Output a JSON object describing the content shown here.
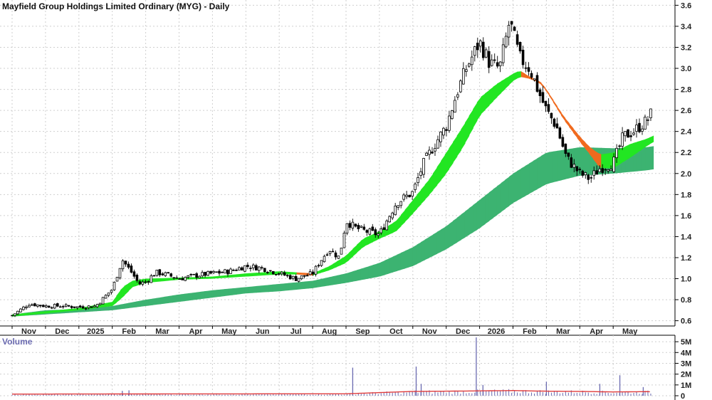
{
  "chart_data": [
    {
      "type": "candlestick",
      "title": "Mayfield Group Holdings Limited Ordinary (MYG) - Daily",
      "x_tick_labels": [
        "Nov",
        "Dec",
        "2025",
        "Feb",
        "Mar",
        "Apr",
        "May",
        "Jun",
        "Jul",
        "Aug",
        "Sep",
        "Oct",
        "Nov",
        "Dec",
        "2026",
        "Feb",
        "Mar",
        "Apr",
        "May"
      ],
      "x_tick_month_index": [
        1,
        2,
        3,
        4,
        5,
        6,
        7,
        8,
        9,
        10,
        11,
        12,
        13,
        14,
        15,
        16,
        17,
        18,
        19
      ],
      "y_ticks": [
        "0.6",
        "0.8",
        "1.0",
        "1.2",
        "1.4",
        "1.6",
        "1.8",
        "2.0",
        "2.2",
        "2.4",
        "2.6",
        "2.8",
        "3.0",
        "3.2",
        "3.4",
        "3.6"
      ],
      "ylim": [
        0.55,
        3.65
      ],
      "grid": true,
      "colors": {
        "candle": "#000000",
        "short_band_up": "#22e622",
        "short_band_down": "#f06a1e",
        "short_band_fade": "#f7b3b3",
        "long_band_up": "#3cb371",
        "long_band_down": "#f06a1e",
        "ribbon_line": "#ff4d4d"
      },
      "series": [
        {
          "key": "close",
          "x": [
            0,
            0.5,
            1,
            1.5,
            2,
            2.5,
            3,
            3.3,
            3.6,
            3.8,
            4,
            4.3,
            4.6,
            5,
            5.5,
            6,
            6.5,
            7,
            7.5,
            8,
            8.5,
            9,
            9.3,
            9.5,
            9.8,
            10,
            10.3,
            10.6,
            11,
            11.5,
            12,
            12.3,
            12.6,
            13,
            13.3,
            13.6,
            14,
            14.3,
            14.6,
            14.9,
            15.2,
            15.5,
            15.8,
            16,
            16.3,
            16.6,
            17,
            17.3,
            17.6,
            18,
            18.3,
            18.6,
            19,
            19.2
          ],
          "values": [
            0.65,
            0.76,
            0.74,
            0.74,
            0.73,
            0.74,
            0.9,
            1.18,
            1.05,
            0.95,
            0.97,
            1.06,
            1.04,
            1.0,
            1.03,
            1.05,
            1.07,
            1.12,
            1.1,
            1.05,
            1.0,
            1.05,
            1.2,
            1.28,
            1.2,
            1.55,
            1.48,
            1.45,
            1.42,
            1.72,
            1.82,
            2.08,
            2.25,
            2.45,
            2.75,
            3.0,
            3.25,
            3.05,
            3.0,
            3.45,
            3.1,
            3.0,
            2.75,
            2.6,
            2.45,
            2.15,
            2.0,
            1.95,
            2.05,
            2.1,
            2.35,
            2.4,
            2.5,
            2.6
          ]
        },
        {
          "key": "short_band_upper",
          "x": [
            0,
            2,
            3,
            3.3,
            3.6,
            4,
            5,
            6,
            7,
            8,
            8.5,
            9,
            9.5,
            10,
            10.5,
            11,
            11.5,
            12,
            12.5,
            13,
            13.5,
            14,
            14.5,
            15,
            15.2,
            15.5,
            15.8,
            16,
            16.5,
            17,
            17.3,
            17.6,
            18,
            18.5,
            19,
            19.2
          ],
          "values": [
            0.66,
            0.72,
            0.78,
            0.92,
            0.98,
            1.0,
            1.01,
            1.02,
            1.05,
            1.07,
            1.06,
            1.05,
            1.12,
            1.22,
            1.38,
            1.45,
            1.55,
            1.75,
            1.95,
            2.2,
            2.45,
            2.72,
            2.85,
            2.95,
            2.98,
            2.92,
            2.88,
            2.8,
            2.55,
            2.35,
            2.25,
            2.18,
            2.2,
            2.28,
            2.33,
            2.36
          ]
        },
        {
          "key": "short_band_lower",
          "x": [
            0,
            2,
            3,
            3.3,
            3.6,
            4,
            5,
            6,
            7,
            8,
            8.5,
            9,
            9.5,
            10,
            10.5,
            11,
            11.5,
            12,
            12.5,
            13,
            13.5,
            14,
            14.5,
            15,
            15.2,
            15.5,
            15.8,
            16,
            16.5,
            17,
            17.3,
            17.6,
            18,
            18.5,
            19,
            19.2
          ],
          "values": [
            0.64,
            0.7,
            0.74,
            0.82,
            0.92,
            0.96,
            0.99,
            1.0,
            1.02,
            1.04,
            1.04,
            1.03,
            1.08,
            1.15,
            1.3,
            1.38,
            1.45,
            1.62,
            1.8,
            2.0,
            2.25,
            2.55,
            2.72,
            2.88,
            2.92,
            2.9,
            2.86,
            2.78,
            2.52,
            2.3,
            2.18,
            2.05,
            2.05,
            2.15,
            2.26,
            2.3
          ]
        },
        {
          "key": "long_band_upper",
          "x": [
            0,
            1,
            2,
            3,
            4,
            5,
            6,
            7,
            8,
            9,
            10,
            11,
            12,
            13,
            14,
            15,
            16,
            17,
            18,
            19,
            19.2
          ],
          "values": [
            0.66,
            0.7,
            0.71,
            0.74,
            0.8,
            0.85,
            0.89,
            0.92,
            0.95,
            0.98,
            1.05,
            1.15,
            1.3,
            1.5,
            1.75,
            2.0,
            2.2,
            2.25,
            2.24,
            2.25,
            2.26
          ]
        },
        {
          "key": "long_band_lower",
          "x": [
            0,
            1,
            2,
            3,
            4,
            5,
            6,
            7,
            8,
            9,
            10,
            11,
            12,
            13,
            14,
            15,
            16,
            17,
            18,
            19,
            19.2
          ],
          "values": [
            0.64,
            0.66,
            0.68,
            0.7,
            0.74,
            0.78,
            0.82,
            0.86,
            0.88,
            0.91,
            0.96,
            1.02,
            1.12,
            1.28,
            1.48,
            1.72,
            1.9,
            1.98,
            2.0,
            2.03,
            2.04
          ]
        }
      ]
    },
    {
      "type": "bar",
      "title": "Volume",
      "y_ticks": [
        "0",
        "1M",
        "2M",
        "3M",
        "4M",
        "5M"
      ],
      "ylim": [
        0,
        5.6
      ],
      "x_month_span": [
        0,
        19.2
      ],
      "colors": {
        "bar": "#6a6ab0",
        "average_line": "#e03c3c"
      },
      "spikes": [
        {
          "x": 3.3,
          "value": 0.45
        },
        {
          "x": 3.5,
          "value": 0.5
        },
        {
          "x": 10.2,
          "value": 2.6
        },
        {
          "x": 12.1,
          "value": 2.7
        },
        {
          "x": 12.25,
          "value": 1.1
        },
        {
          "x": 13.9,
          "value": 5.4
        },
        {
          "x": 14.1,
          "value": 1.0
        },
        {
          "x": 16.0,
          "value": 1.3
        },
        {
          "x": 17.6,
          "value": 1.1
        },
        {
          "x": 18.2,
          "value": 1.9
        },
        {
          "x": 18.9,
          "value": 0.8
        }
      ],
      "average": {
        "x": [
          0,
          5,
          10,
          12,
          13,
          14,
          15,
          16,
          17,
          18,
          19,
          19.2
        ],
        "values": [
          0.15,
          0.17,
          0.18,
          0.4,
          0.42,
          0.45,
          0.48,
          0.42,
          0.4,
          0.35,
          0.38,
          0.36
        ]
      }
    }
  ]
}
